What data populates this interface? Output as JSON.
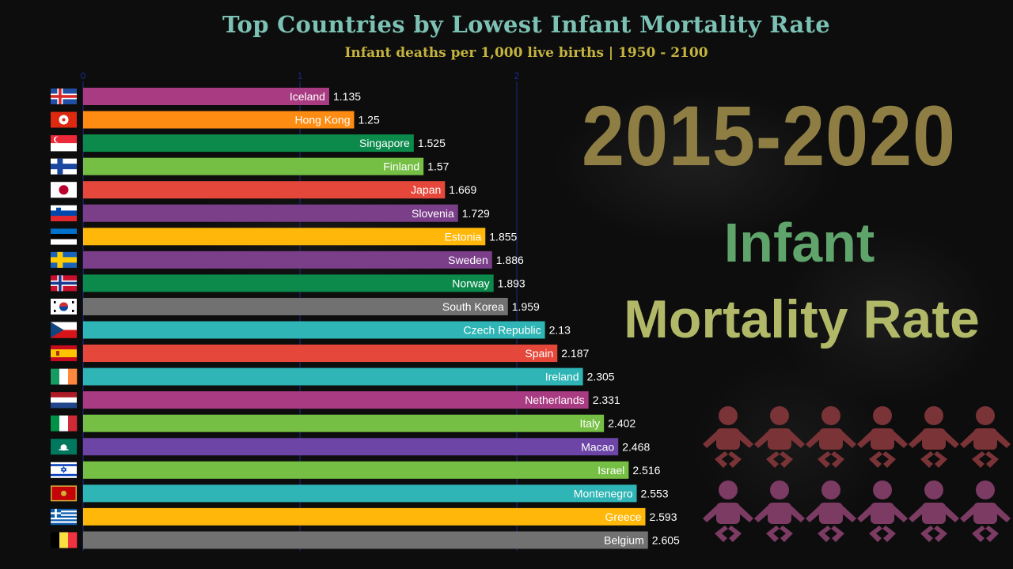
{
  "title": "Top Countries by Lowest Infant Mortality Rate",
  "subtitle": "Infant deaths per 1,000 live births | 1950 - 2100",
  "period": "2015-2020",
  "metric_line1": "Infant",
  "metric_line2": "Mortality Rate",
  "colors": {
    "background": "#0d0d0d",
    "title": "#7cc2b4",
    "subtitle": "#c4b33e",
    "period": "#8f7e44",
    "metric_line1": "#5fa46b",
    "metric_line2": "#b1b867",
    "axis": "#1a2a8c",
    "baby_top": "#7a3336",
    "baby_bottom": "#7b3b63"
  },
  "chart_data": {
    "type": "bar",
    "orientation": "horizontal",
    "xlim": [
      0,
      2.7
    ],
    "xticks": [
      0,
      1,
      2
    ],
    "grid": true,
    "categories": [
      "Iceland",
      "Hong Kong",
      "Singapore",
      "Finland",
      "Japan",
      "Slovenia",
      "Estonia",
      "Sweden",
      "Norway",
      "South Korea",
      "Czech Republic",
      "Spain",
      "Ireland",
      "Netherlands",
      "Italy",
      "Macao",
      "Israel",
      "Montenegro",
      "Greece",
      "Belgium"
    ],
    "values": [
      1.135,
      1.25,
      1.525,
      1.57,
      1.669,
      1.729,
      1.855,
      1.886,
      1.893,
      1.959,
      2.13,
      2.187,
      2.305,
      2.331,
      2.402,
      2.468,
      2.516,
      2.553,
      2.593,
      2.605
    ],
    "value_labels": [
      "1.135",
      "1.25",
      "1.525",
      "1.57",
      "1.669",
      "1.729",
      "1.855",
      "1.886",
      "1.893",
      "1.959",
      "2.13",
      "2.187",
      "2.305",
      "2.331",
      "2.402",
      "2.468",
      "2.516",
      "2.553",
      "2.593",
      "2.605"
    ],
    "bar_colors": [
      "#a93b82",
      "#ff8c12",
      "#0b8a4c",
      "#74bf44",
      "#e5483a",
      "#7b3f8a",
      "#ffb80a",
      "#7b3f8a",
      "#0b8a4c",
      "#717171",
      "#2fb5b5",
      "#e5483a",
      "#2fb5b5",
      "#a93b82",
      "#74bf44",
      "#6c45a6",
      "#74bf44",
      "#2fb5b5",
      "#ffb80a",
      "#717171"
    ],
    "flags": [
      "iceland-flag",
      "hong-kong-flag",
      "singapore-flag",
      "finland-flag",
      "japan-flag",
      "slovenia-flag",
      "estonia-flag",
      "sweden-flag",
      "norway-flag",
      "south-korea-flag",
      "czech-republic-flag",
      "spain-flag",
      "ireland-flag",
      "netherlands-flag",
      "italy-flag",
      "macao-flag",
      "israel-flag",
      "montenegro-flag",
      "greece-flag",
      "belgium-flag"
    ]
  }
}
